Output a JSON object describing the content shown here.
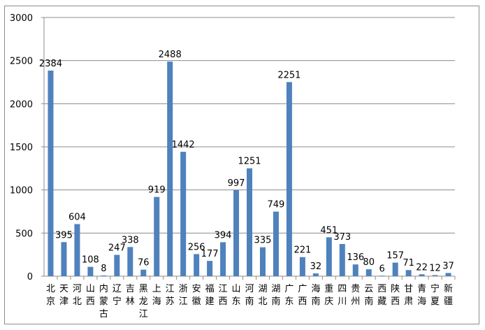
{
  "chart_data": {
    "type": "bar",
    "title": "",
    "xlabel": "",
    "ylabel": "",
    "ylim": [
      0,
      3000
    ],
    "yticks": [
      0,
      500,
      1000,
      1500,
      2000,
      2500,
      3000
    ],
    "grid": true,
    "legend": "none",
    "bar_color": "#4f81bd",
    "categories": [
      "北京",
      "天津",
      "河北",
      "山西",
      "内蒙古",
      "辽宁",
      "吉林",
      "黑龙江",
      "上海",
      "江苏",
      "浙江",
      "安徽",
      "福建",
      "江西",
      "山东",
      "河南",
      "湖北",
      "湖南",
      "广东",
      "广西",
      "海南",
      "重庆",
      "四川",
      "贵州",
      "云南",
      "西藏",
      "陕西",
      "甘肃",
      "青海",
      "宁夏",
      "新疆"
    ],
    "values": [
      2384,
      395,
      604,
      108,
      8,
      247,
      338,
      76,
      919,
      2488,
      1442,
      256,
      177,
      394,
      997,
      1251,
      335,
      749,
      2251,
      221,
      32,
      451,
      373,
      136,
      80,
      6,
      157,
      71,
      22,
      12,
      37
    ]
  }
}
